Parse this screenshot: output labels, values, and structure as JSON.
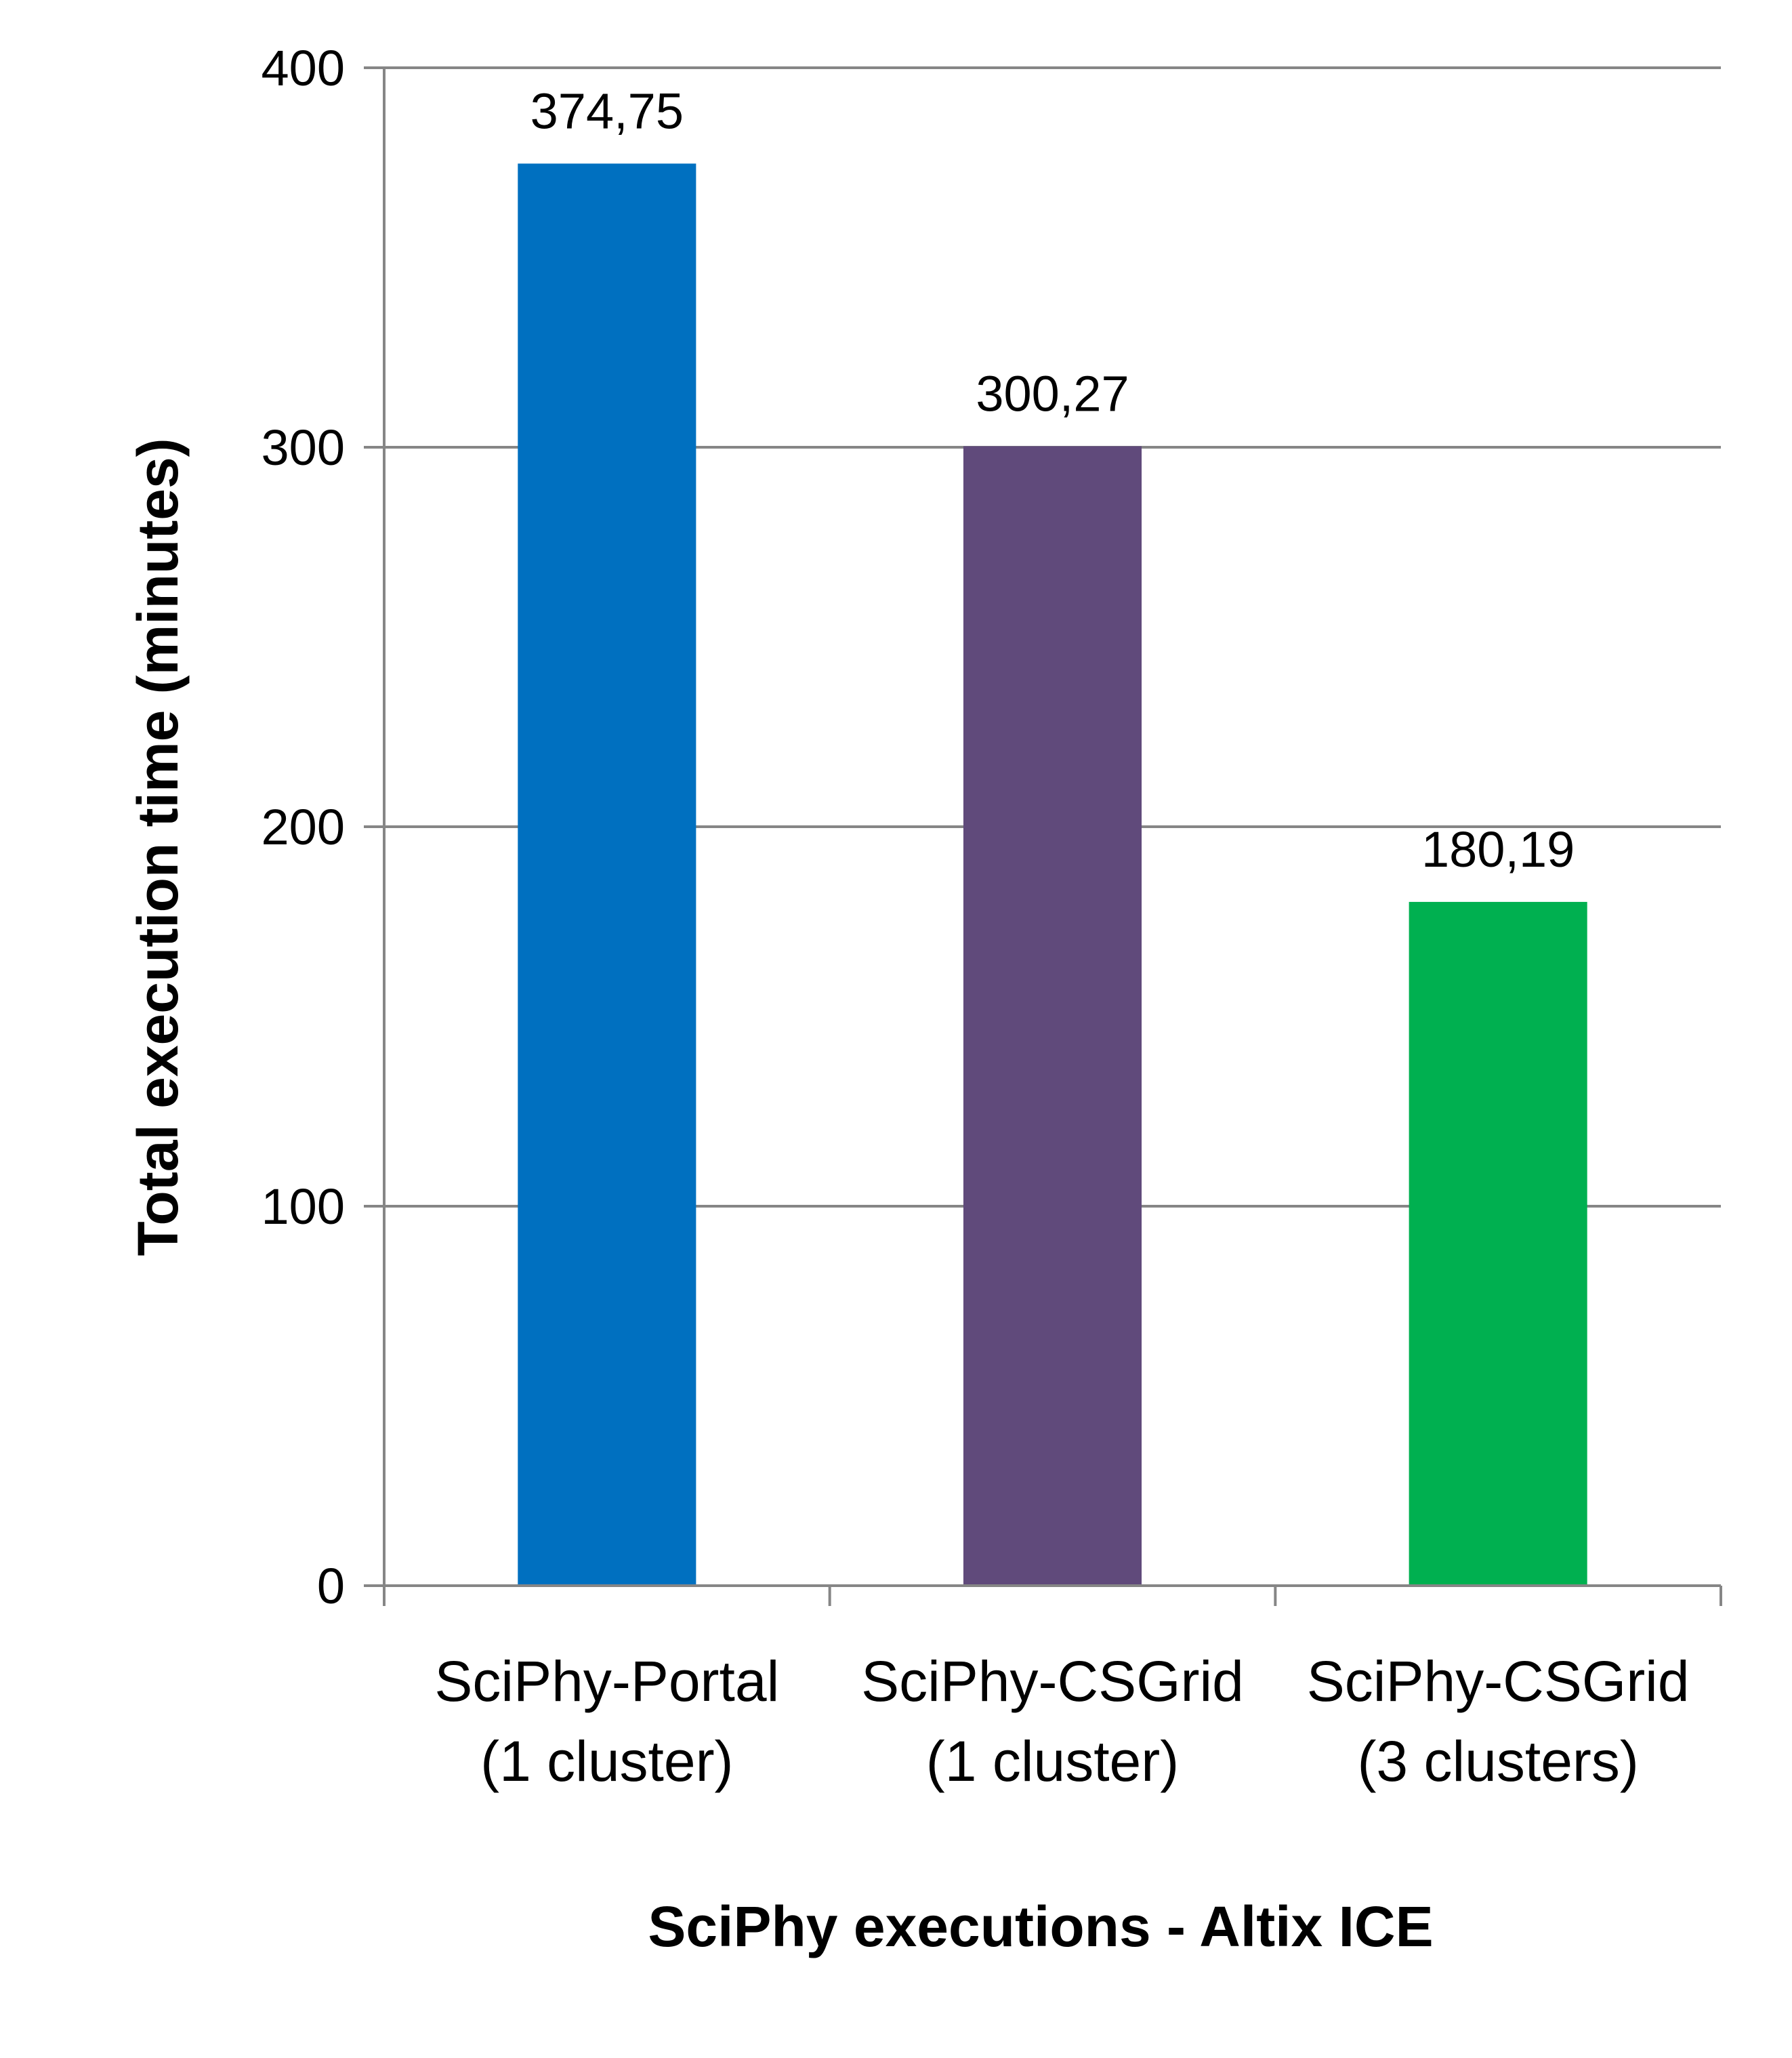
{
  "chart_data": {
    "type": "bar",
    "title": "",
    "xlabel": "SciPhy executions - Altix ICE",
    "ylabel": "Total execution time (minutes)",
    "ylim": [
      0,
      400
    ],
    "yticks": [
      0,
      100,
      200,
      300,
      400
    ],
    "grid": true,
    "legend": "none",
    "categories": [
      [
        "SciPhy-Portal",
        "(1 cluster)"
      ],
      [
        "SciPhy-CSGrid",
        "(1 cluster)"
      ],
      [
        "SciPhy-CSGrid",
        "(3 clusters)"
      ]
    ],
    "values": [
      374.75,
      300.27,
      180.19
    ],
    "data_labels": [
      "374,75",
      "300,27",
      "180,19"
    ],
    "colors": [
      "#0070C0",
      "#604A7B",
      "#00B050"
    ],
    "axis_color": "#868686"
  }
}
